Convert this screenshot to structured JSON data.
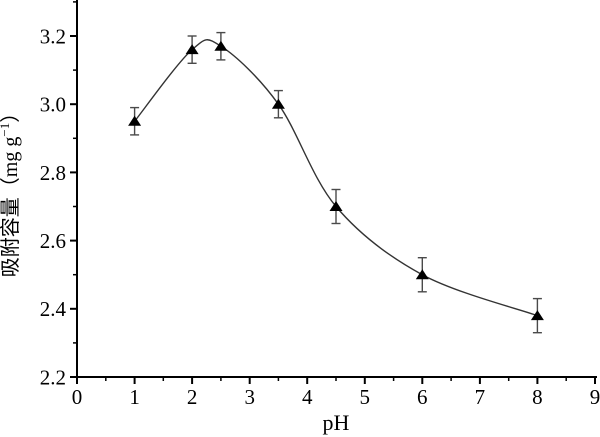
{
  "page": {
    "background": "#ffffff"
  },
  "chart_data": {
    "type": "line",
    "subtype": "scatter-with-smooth-curve-and-error-bars",
    "title": "",
    "xlabel": "pH",
    "ylabel": "吸附容量（mg g⁻¹）",
    "ylabel_parts": {
      "prefix": "吸附容量（mg g",
      "superscript": "−1",
      "suffix": "）"
    },
    "x": [
      1,
      2,
      2.5,
      3.5,
      4.5,
      6,
      8
    ],
    "y": [
      2.95,
      3.16,
      3.17,
      3.0,
      2.7,
      2.5,
      2.38
    ],
    "yerr": [
      0.04,
      0.04,
      0.04,
      0.04,
      0.05,
      0.05,
      0.05
    ],
    "xlim": [
      0,
      9
    ],
    "ylim": [
      2.2,
      3.3
    ],
    "x_major_ticks": [
      "0",
      "1",
      "2",
      "3",
      "4",
      "5",
      "6",
      "7",
      "8",
      "9"
    ],
    "x_minor_step": 0.5,
    "y_major_ticks": [
      "2.2",
      "2.4",
      "2.6",
      "2.8",
      "3.0",
      "3.2"
    ],
    "y_minor_step": 0.1,
    "marker": "filled-triangle-up",
    "curve": "smooth-spline",
    "grid": false,
    "legend": false,
    "colors": {
      "axis": "#000000",
      "text": "#000000",
      "marker": "#000000",
      "curve": "#333333",
      "error_bar": "#4a4a4a"
    }
  }
}
